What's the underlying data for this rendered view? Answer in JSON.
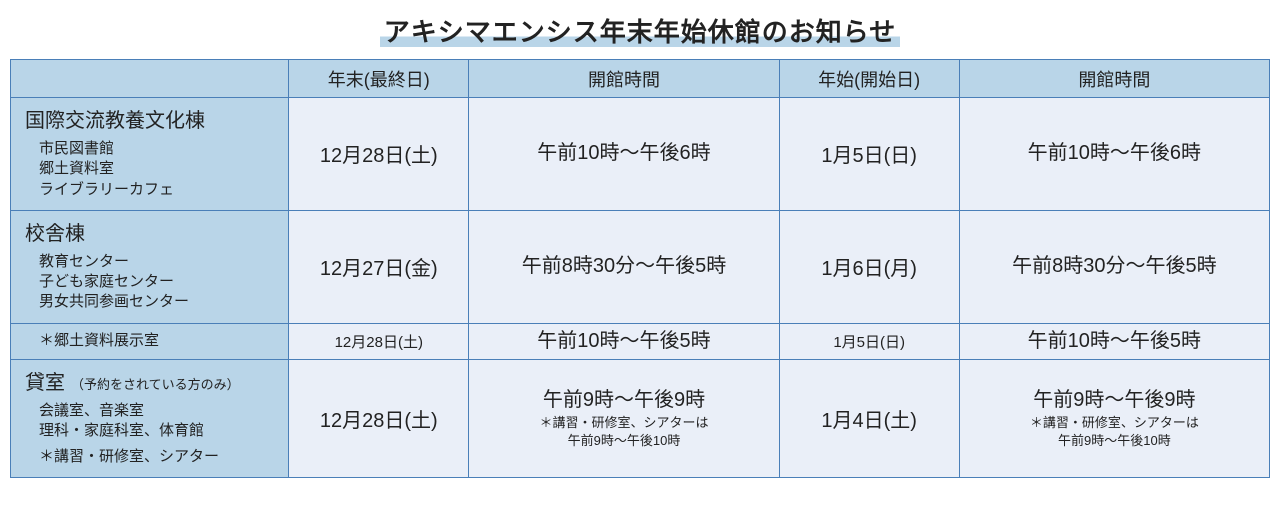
{
  "title": "アキシマエンシス年末年始休館のお知らせ",
  "columns": {
    "ye_last": "年末(最終日)",
    "ye_hours": "開館時間",
    "ny_first": "年始(開始日)",
    "ny_hours": "開館時間"
  },
  "rows": [
    {
      "head": {
        "title": "国際交流教養文化棟",
        "subs": [
          "市民図書館",
          "郷土資料室",
          "ライブラリーカフェ"
        ]
      },
      "ye_last": "12月28日(土)",
      "ye_hours": {
        "main": "午前10時～午後6時"
      },
      "ny_first": "1月5日(日)",
      "ny_hours": {
        "main": "午前10時～午後6時"
      }
    },
    {
      "head": {
        "title": "校舎棟",
        "subs": [
          "教育センター",
          "子ども家庭センター",
          "男女共同参画センター"
        ]
      },
      "ye_last": "12月27日(金)",
      "ye_hours": {
        "main": "午前8時30分～午後5時"
      },
      "ny_first": "1月6日(月)",
      "ny_hours": {
        "main": "午前8時30分～午後5時"
      }
    },
    {
      "small": true,
      "head": {
        "title_small": "＊郷土資料展示室"
      },
      "ye_last": "12月28日(土)",
      "ye_hours": {
        "main": "午前10時～午後5時"
      },
      "ny_first": "1月5日(日)",
      "ny_hours": {
        "main": "午前10時～午後5時"
      }
    },
    {
      "head": {
        "title": "貸室",
        "title_paren": "（予約をされている方のみ）",
        "subs": [
          "会議室、音楽室",
          "理科・家庭科室、体育館"
        ],
        "sub_extra": "＊講習・研修室、シアター"
      },
      "ye_last": "12月28日(土)",
      "ye_hours": {
        "main": "午前9時～午後9時",
        "note": "＊講習・研修室、シアターは",
        "note2": "午前9時～午後10時"
      },
      "ny_first": "1月4日(土)",
      "ny_hours": {
        "main": "午前9時～午後9時",
        "note": "＊講習・研修室、シアターは",
        "note2": "午前9時～午後10時"
      }
    }
  ]
}
